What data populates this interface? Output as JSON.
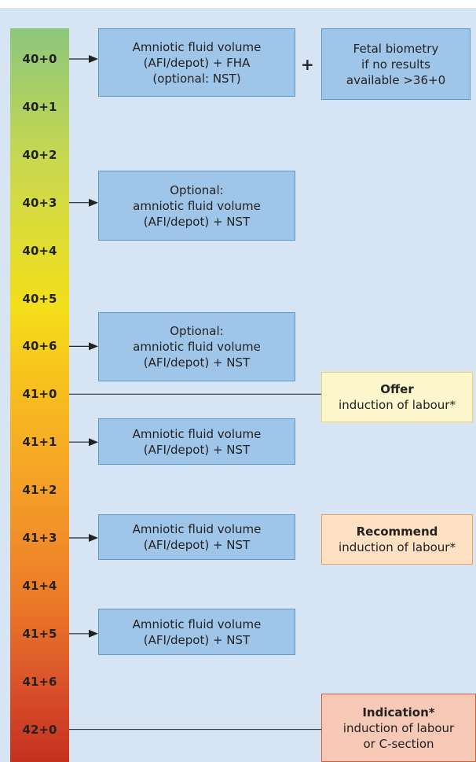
{
  "weeks": [
    "40+0",
    "40+1",
    "40+2",
    "40+3",
    "40+4",
    "40+5",
    "40+6",
    "41+0",
    "41+1",
    "41+2",
    "41+3",
    "41+4",
    "41+5",
    "41+6",
    "42+0"
  ],
  "steps": [
    {
      "lines": [
        "Amniotic fluid volume",
        "(AFI/depot) + FHA",
        "(optional: NST)"
      ]
    },
    {
      "lines": [
        "Optional:",
        "amniotic fluid volume",
        "(AFI/depot) + NST"
      ]
    },
    {
      "lines": [
        "Optional:",
        "amniotic fluid volume",
        "(AFI/depot) + NST"
      ]
    },
    {
      "lines": [
        "Amniotic fluid volume",
        "(AFI/depot) + NST"
      ]
    },
    {
      "lines": [
        "Amniotic fluid volume",
        "(AFI/depot) + NST"
      ]
    },
    {
      "lines": [
        "Amniotic fluid volume",
        "(AFI/depot) + NST"
      ]
    }
  ],
  "plus": "+",
  "biometry": {
    "lines": [
      "Fetal biometry",
      "if no results",
      "available >36+0"
    ]
  },
  "induction": [
    {
      "title": "Offer",
      "lines": [
        "induction of labour*"
      ]
    },
    {
      "title": "Recommend",
      "lines": [
        "induction of labour*"
      ]
    },
    {
      "title": "Indication*",
      "lines": [
        "induction of labour",
        "or C-section"
      ]
    }
  ]
}
